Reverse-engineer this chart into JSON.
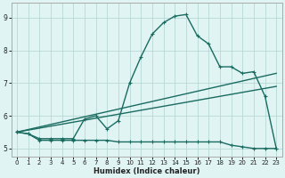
{
  "xlabel": "Humidex (Indice chaleur)",
  "background_color": "#e0f4f4",
  "grid_color": "#b8d8d4",
  "line_color": "#1a6b60",
  "xlim": [
    -0.5,
    23.5
  ],
  "ylim": [
    4.75,
    9.45
  ],
  "xticks": [
    0,
    1,
    2,
    3,
    4,
    5,
    6,
    7,
    8,
    9,
    10,
    11,
    12,
    13,
    14,
    15,
    16,
    17,
    18,
    19,
    20,
    21,
    22,
    23
  ],
  "yticks": [
    5,
    6,
    7,
    8,
    9
  ],
  "curve_main_x": [
    0,
    1,
    2,
    3,
    4,
    5,
    6,
    7,
    8,
    9,
    10,
    11,
    12,
    13,
    14,
    15,
    16,
    17,
    18,
    19,
    20,
    21,
    22,
    23
  ],
  "curve_main_y": [
    5.5,
    5.45,
    5.3,
    5.3,
    5.3,
    5.3,
    5.9,
    6.0,
    5.6,
    5.85,
    7.0,
    7.8,
    8.5,
    8.85,
    9.05,
    9.1,
    8.45,
    8.2,
    7.5,
    7.5,
    7.3,
    7.35,
    6.6,
    5.0
  ],
  "curve_line1_x": [
    0,
    23
  ],
  "curve_line1_y": [
    5.5,
    7.3
  ],
  "curve_line2_x": [
    0,
    23
  ],
  "curve_line2_y": [
    5.5,
    6.9
  ],
  "curve_flat_x": [
    0,
    1,
    2,
    3,
    4,
    5,
    6,
    7,
    8,
    9,
    10,
    11,
    12,
    13,
    14,
    15,
    16,
    17,
    18,
    19,
    20,
    21,
    22,
    23
  ],
  "curve_flat_y": [
    5.5,
    5.45,
    5.25,
    5.25,
    5.25,
    5.25,
    5.25,
    5.25,
    5.25,
    5.2,
    5.2,
    5.2,
    5.2,
    5.2,
    5.2,
    5.2,
    5.2,
    5.2,
    5.2,
    5.1,
    5.05,
    5.0,
    5.0,
    5.0
  ],
  "marker_size": 3,
  "line_width": 1.0
}
